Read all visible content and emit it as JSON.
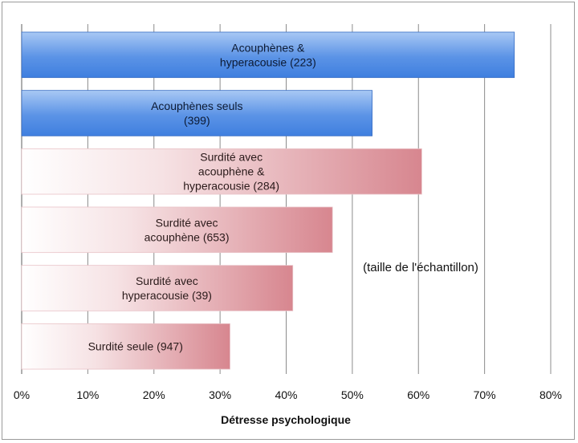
{
  "chart_data": {
    "type": "bar",
    "orientation": "horizontal",
    "categories": [
      [
        "Acouphènes &",
        "hyperacousie (223)"
      ],
      [
        "Acouphènes seuls",
        "(399)"
      ],
      [
        "Surdité avec",
        "acouphène &",
        "hyperacousie (284)"
      ],
      [
        "Surdité avec",
        "acouphène (653)"
      ],
      [
        "Surdité avec",
        "hyperacousie (39)"
      ],
      [
        "Surdité seule (947)"
      ]
    ],
    "values": [
      74.5,
      53,
      60.5,
      47,
      41,
      31.5
    ],
    "bar_style": [
      "blue",
      "blue",
      "pink",
      "pink",
      "pink",
      "pink"
    ],
    "colors": {
      "blue_light": "#a8c8f4",
      "blue_dark": "#3f7fdf",
      "pink_light": "#ffffff",
      "pink_dark": "#d7868f",
      "grid": "#8c8c8c"
    },
    "xlabel": "Détresse psychologique",
    "xlim": [
      0,
      80
    ],
    "x_ticks": [
      "0%",
      "10%",
      "20%",
      "30%",
      "40%",
      "50%",
      "60%",
      "70%",
      "80%"
    ],
    "annotation": "(taille de l'échantillon)",
    "grid": true
  }
}
